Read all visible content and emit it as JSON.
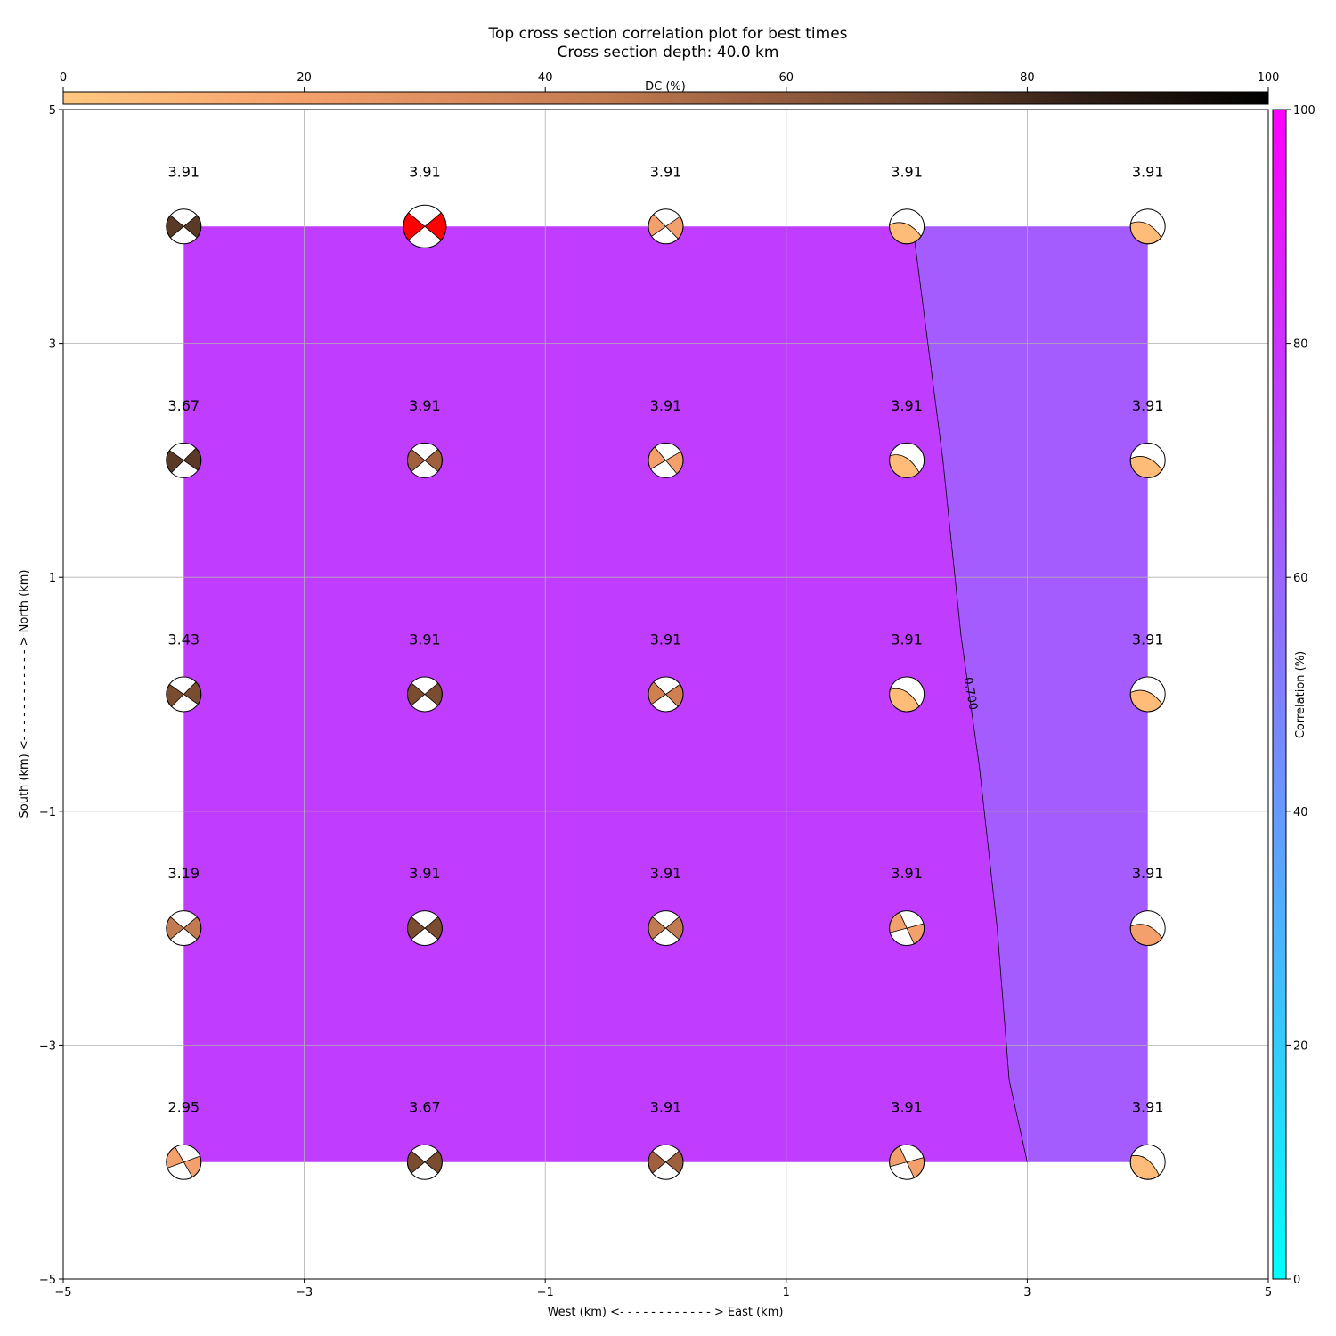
{
  "chart_data": {
    "type": "heatmap",
    "title": "Top cross section correlation plot for best times",
    "subtitle": "Cross section depth: 40.0 km",
    "xlabel": "West (km) <- - - - - - - - - - - - > East (km)",
    "ylabel": "South (km) <- - - - - - - - - - - - > North (km)",
    "xlim": [
      -5,
      5
    ],
    "ylim": [
      -5,
      5
    ],
    "x_ticks": [
      -5,
      -3,
      -1,
      1,
      3,
      5
    ],
    "y_ticks": [
      -5,
      -3,
      -1,
      1,
      3,
      5
    ],
    "x_tick_labels": [
      "−5",
      "−3",
      "−1",
      "1",
      "3",
      "5"
    ],
    "y_tick_labels": [
      "−5",
      "−3",
      "−1",
      "1",
      "3",
      "5"
    ],
    "grid": true,
    "x_grid": [
      -4,
      -2,
      0,
      2,
      4
    ],
    "y_grid": [
      4,
      2,
      0,
      -2,
      -4
    ],
    "correlation_regions": [
      {
        "level": "high",
        "color": "#c03cff"
      },
      {
        "level": "low",
        "color": "#a45cff"
      }
    ],
    "contour": {
      "label": "0.700",
      "points": [
        [
          2.05,
          4.0
        ],
        [
          2.3,
          2.0
        ],
        [
          2.45,
          0.5
        ],
        [
          2.6,
          -0.6
        ],
        [
          2.75,
          -2.0
        ],
        [
          2.85,
          -3.3
        ],
        [
          3.0,
          -4.0
        ]
      ]
    },
    "dc_colorbar": {
      "label": "DC (%)",
      "ticks": [
        0,
        20,
        40,
        60,
        80,
        100
      ],
      "colors": [
        "#ffc880",
        "#f4a06c",
        "#c27a50",
        "#7a4c30",
        "#372218",
        "#000000"
      ]
    },
    "corr_colorbar": {
      "label": "Correlation (%)",
      "ticks": [
        0,
        20,
        40,
        60,
        80,
        100
      ],
      "colors": [
        "#00ffff",
        "#40b0ff",
        "#8070ff",
        "#c040ff",
        "#ff00ff"
      ]
    },
    "beachballs": [
      {
        "x": -4,
        "y": 4,
        "label": "3.91",
        "color": "#5a3a26",
        "strike": 0,
        "style": "quad"
      },
      {
        "x": -2,
        "y": 4,
        "label": "3.91",
        "color": "#ff0000",
        "strike": 0,
        "style": "quad",
        "big": true
      },
      {
        "x": 0,
        "y": 4,
        "label": "3.91",
        "color": "#f4a06c",
        "strike": 5,
        "style": "quad"
      },
      {
        "x": 2,
        "y": 4,
        "label": "3.91",
        "color": "#ffbb78",
        "strike": 20,
        "style": "band"
      },
      {
        "x": 4,
        "y": 4,
        "label": "3.91",
        "color": "#ffbb78",
        "strike": 25,
        "style": "band"
      },
      {
        "x": -4,
        "y": 2,
        "label": "3.67",
        "color": "#5a3a26",
        "strike": -5,
        "style": "quad"
      },
      {
        "x": -2,
        "y": 2,
        "label": "3.91",
        "color": "#a0603e",
        "strike": 0,
        "style": "quad"
      },
      {
        "x": 0,
        "y": 2,
        "label": "3.91",
        "color": "#f4a06c",
        "strike": 10,
        "style": "quad"
      },
      {
        "x": 2,
        "y": 2,
        "label": "3.91",
        "color": "#ffbb78",
        "strike": 30,
        "style": "band"
      },
      {
        "x": 4,
        "y": 2,
        "label": "3.91",
        "color": "#ffbb78",
        "strike": 20,
        "style": "band"
      },
      {
        "x": -4,
        "y": 0,
        "label": "3.43",
        "color": "#7a4c30",
        "strike": -5,
        "style": "quad"
      },
      {
        "x": -2,
        "y": 0,
        "label": "3.91",
        "color": "#7a4c30",
        "strike": 0,
        "style": "quad"
      },
      {
        "x": 0,
        "y": 0,
        "label": "3.91",
        "color": "#d08050",
        "strike": 5,
        "style": "quad"
      },
      {
        "x": 2,
        "y": 0,
        "label": "3.91",
        "color": "#ffbb78",
        "strike": 30,
        "style": "band"
      },
      {
        "x": 4,
        "y": 0,
        "label": "3.91",
        "color": "#ffbb78",
        "strike": 20,
        "style": "band"
      },
      {
        "x": -4,
        "y": -2,
        "label": "3.19",
        "color": "#c27a50",
        "strike": 0,
        "style": "quad"
      },
      {
        "x": -2,
        "y": -2,
        "label": "3.91",
        "color": "#7a4c30",
        "strike": 0,
        "style": "quad"
      },
      {
        "x": 0,
        "y": -2,
        "label": "3.91",
        "color": "#c27a50",
        "strike": 0,
        "style": "quad"
      },
      {
        "x": 2,
        "y": -2,
        "label": "3.91",
        "color": "#f4a06c",
        "strike": 25,
        "style": "quad"
      },
      {
        "x": 4,
        "y": -2,
        "label": "3.91",
        "color": "#f4a06c",
        "strike": 20,
        "style": "band"
      },
      {
        "x": -4,
        "y": -4,
        "label": "2.95",
        "color": "#f4a06c",
        "strike": 20,
        "style": "quad"
      },
      {
        "x": -2,
        "y": -4,
        "label": "3.67",
        "color": "#7a4c30",
        "strike": 0,
        "style": "quad"
      },
      {
        "x": 0,
        "y": -4,
        "label": "3.91",
        "color": "#a0603e",
        "strike": 0,
        "style": "quad"
      },
      {
        "x": 2,
        "y": -4,
        "label": "3.91",
        "color": "#f4a06c",
        "strike": 25,
        "style": "quad"
      },
      {
        "x": 4,
        "y": -4,
        "label": "3.91",
        "color": "#ffbb78",
        "strike": 35,
        "style": "band"
      }
    ]
  }
}
